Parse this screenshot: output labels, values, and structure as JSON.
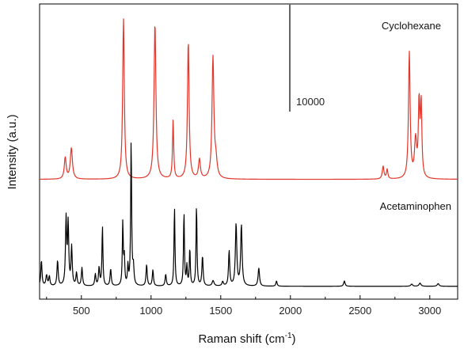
{
  "chart_data": {
    "type": "line",
    "xlabel": "Raman shift (cm",
    "xlabel_sup": "-1",
    "xlabel_close": ")",
    "ylabel": "Intensity (a.u.)",
    "xlim": [
      200,
      3200
    ],
    "xticks": [
      500,
      1000,
      1500,
      2000,
      2500,
      3000
    ],
    "scale_bar": {
      "label": "10000",
      "value": 10000
    },
    "grid": false,
    "series": [
      {
        "name": "Cyclohexane",
        "color": "#e3342a",
        "baseline_offset": 10000,
        "peaks": [
          [
            384,
            2000,
            8
          ],
          [
            428,
            2900,
            9
          ],
          [
            802,
            15000,
            7
          ],
          [
            1028,
            14600,
            8
          ],
          [
            1158,
            5500,
            5
          ],
          [
            1267,
            12900,
            7
          ],
          [
            1347,
            1800,
            8
          ],
          [
            1444,
            11300,
            8
          ],
          [
            1465,
            1500,
            10
          ],
          [
            2665,
            1200,
            7
          ],
          [
            2694,
            900,
            6
          ],
          [
            2853,
            11800,
            7
          ],
          [
            2898,
            3500,
            9
          ],
          [
            2923,
            6800,
            6
          ],
          [
            2938,
            6800,
            6
          ]
        ]
      },
      {
        "name": "Acetaminophen",
        "color": "#000000",
        "baseline_offset": 0,
        "peaks": [
          [
            213,
            2400,
            5
          ],
          [
            250,
            1000,
            6
          ],
          [
            270,
            900,
            5
          ],
          [
            329,
            2400,
            5
          ],
          [
            390,
            6200,
            5
          ],
          [
            405,
            5700,
            5
          ],
          [
            430,
            3600,
            5
          ],
          [
            465,
            1200,
            5
          ],
          [
            504,
            1700,
            5
          ],
          [
            600,
            1100,
            5
          ],
          [
            627,
            1700,
            5
          ],
          [
            651,
            5600,
            4
          ],
          [
            710,
            1600,
            5
          ],
          [
            797,
            5900,
            4
          ],
          [
            808,
            2500,
            4
          ],
          [
            834,
            1800,
            4
          ],
          [
            857,
            13600,
            4
          ],
          [
            873,
            1700,
            5
          ],
          [
            968,
            2000,
            5
          ],
          [
            1013,
            1500,
            5
          ],
          [
            1105,
            1100,
            5
          ],
          [
            1168,
            7400,
            4
          ],
          [
            1236,
            6900,
            4
          ],
          [
            1257,
            1800,
            4
          ],
          [
            1278,
            3500,
            4
          ],
          [
            1326,
            7600,
            4
          ],
          [
            1369,
            2800,
            5
          ],
          [
            1445,
            500,
            8
          ],
          [
            1514,
            400,
            6
          ],
          [
            1560,
            3300,
            5
          ],
          [
            1610,
            5800,
            6
          ],
          [
            1648,
            5700,
            6
          ],
          [
            1773,
            1700,
            6
          ],
          [
            1900,
            500,
            5
          ],
          [
            2387,
            500,
            6
          ],
          [
            2870,
            200,
            8
          ],
          [
            2930,
            300,
            8
          ],
          [
            3060,
            250,
            8
          ]
        ]
      }
    ]
  }
}
